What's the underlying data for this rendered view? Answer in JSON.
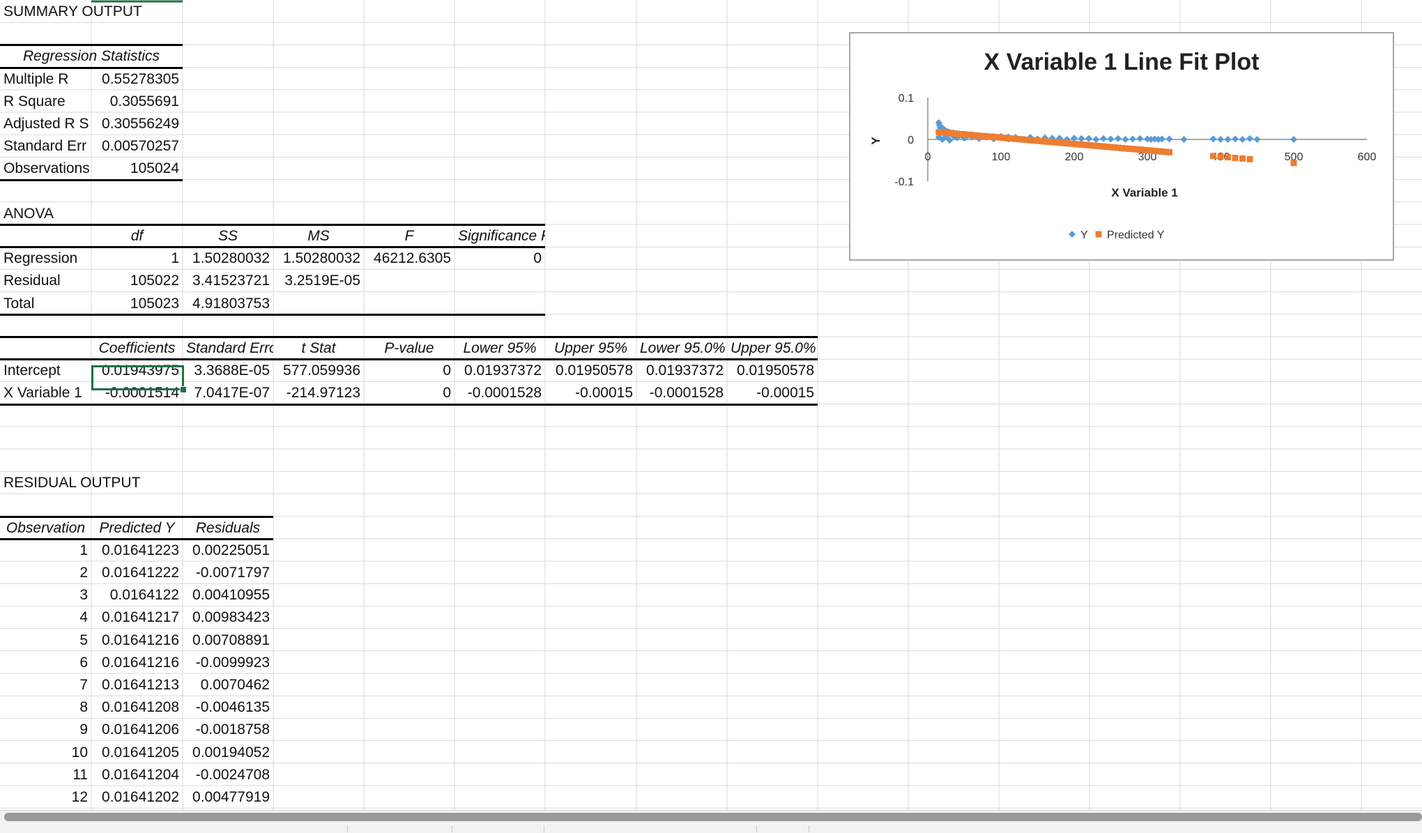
{
  "summary": {
    "title": "SUMMARY OUTPUT",
    "regstats_header": "Regression Statistics",
    "rows": [
      {
        "label": "Multiple R",
        "value": "0.55278305"
      },
      {
        "label": "R Square",
        "value": "0.3055691"
      },
      {
        "label": "Adjusted R S",
        "value": "0.30556249"
      },
      {
        "label": "Standard Err",
        "value": "0.00570257"
      },
      {
        "label": "Observations",
        "value": "105024"
      }
    ]
  },
  "anova": {
    "title": "ANOVA",
    "headers": [
      "df",
      "SS",
      "MS",
      "F",
      "Significance F"
    ],
    "rows": [
      {
        "label": "Regression",
        "df": "1",
        "ss": "1.50280032",
        "ms": "1.50280032",
        "f": "46212.6305",
        "sig": "0"
      },
      {
        "label": "Residual",
        "df": "105022",
        "ss": "3.41523721",
        "ms": "3.2519E-05",
        "f": "",
        "sig": ""
      },
      {
        "label": "Total",
        "df": "105023",
        "ss": "4.91803753",
        "ms": "",
        "f": "",
        "sig": ""
      }
    ]
  },
  "coefficients": {
    "headers": [
      "Coefficients",
      "Standard Erro",
      "t Stat",
      "P-value",
      "Lower 95%",
      "Upper 95%",
      "Lower 95.0%",
      "Upper 95.0%"
    ],
    "rows": [
      {
        "label": "Intercept",
        "values": [
          "0.01943975",
          "3.3688E-05",
          "577.059936",
          "0",
          "0.01937372",
          "0.01950578",
          "0.01937372",
          "0.01950578"
        ]
      },
      {
        "label": "X Variable 1",
        "values": [
          "-0.0001514",
          "7.0417E-07",
          "-214.97123",
          "0",
          "-0.0001528",
          "-0.00015",
          "-0.0001528",
          "-0.00015"
        ]
      }
    ]
  },
  "residual": {
    "title": "RESIDUAL OUTPUT",
    "headers": [
      "Observation",
      "Predicted Y",
      "Residuals"
    ],
    "rows": [
      {
        "obs": "1",
        "pred": "0.01641223",
        "res": "0.00225051"
      },
      {
        "obs": "2",
        "pred": "0.01641222",
        "res": "-0.0071797"
      },
      {
        "obs": "3",
        "pred": "0.0164122",
        "res": "0.00410955"
      },
      {
        "obs": "4",
        "pred": "0.01641217",
        "res": "0.00983423"
      },
      {
        "obs": "5",
        "pred": "0.01641216",
        "res": "0.00708891"
      },
      {
        "obs": "6",
        "pred": "0.01641216",
        "res": "-0.0099923"
      },
      {
        "obs": "7",
        "pred": "0.01641213",
        "res": "0.0070462"
      },
      {
        "obs": "8",
        "pred": "0.01641208",
        "res": "-0.0046135"
      },
      {
        "obs": "9",
        "pred": "0.01641206",
        "res": "-0.0018758"
      },
      {
        "obs": "10",
        "pred": "0.01641205",
        "res": "0.00194052"
      },
      {
        "obs": "11",
        "pred": "0.01641204",
        "res": "-0.0024708"
      },
      {
        "obs": "12",
        "pred": "0.01641202",
        "res": "0.00477919"
      }
    ]
  },
  "colors": {
    "gridline": "#d9d9d9",
    "selection": "#1e7145",
    "series_y": "#5b9bd5",
    "series_pred": "#ed7d31",
    "chart_border": "#a6a6a6"
  },
  "chart_data": {
    "type": "scatter",
    "title": "X Variable 1 Line Fit  Plot",
    "xlabel": "X Variable 1",
    "ylabel": "Y",
    "xlim": [
      0,
      600
    ],
    "ylim": [
      -0.1,
      0.1
    ],
    "x_ticks": [
      "0",
      "100",
      "200",
      "300",
      "400",
      "500",
      "600"
    ],
    "y_ticks": [
      "0.1",
      "0",
      "-0.1"
    ],
    "legend_position": "bottom",
    "series": [
      {
        "name": "Y",
        "marker": "diamond",
        "color": "#5b9bd5",
        "points": [
          [
            15,
            0.04
          ],
          [
            16,
            0.034
          ],
          [
            17,
            0.028
          ],
          [
            18,
            0.03
          ],
          [
            19,
            0.024
          ],
          [
            20,
            0.02
          ],
          [
            21,
            0.026
          ],
          [
            22,
            0.018
          ],
          [
            24,
            0.021
          ],
          [
            25,
            0.016
          ],
          [
            27,
            0.019
          ],
          [
            28,
            0.014
          ],
          [
            30,
            0.017
          ],
          [
            32,
            0.013
          ],
          [
            35,
            0.016
          ],
          [
            38,
            0.012
          ],
          [
            40,
            0.014
          ],
          [
            45,
            0.011
          ],
          [
            50,
            0.012
          ],
          [
            55,
            0.01
          ],
          [
            60,
            0.011
          ],
          [
            70,
            0.009
          ],
          [
            80,
            0.008
          ],
          [
            90,
            0.007
          ],
          [
            100,
            0.007
          ],
          [
            110,
            0.006
          ],
          [
            120,
            0.005
          ],
          [
            140,
            0.005
          ],
          [
            160,
            0.004
          ],
          [
            180,
            0.003
          ],
          [
            200,
            0.003
          ],
          [
            220,
            0.002
          ],
          [
            240,
            0.002
          ],
          [
            260,
            0.002
          ],
          [
            280,
            0.001
          ],
          [
            300,
            0.001
          ],
          [
            310,
            0.001
          ],
          [
            320,
            0.001
          ],
          [
            330,
            0.001
          ],
          [
            350,
            0.0
          ],
          [
            390,
            0.001
          ],
          [
            400,
            0.0
          ],
          [
            410,
            0.0
          ],
          [
            420,
            0.001
          ],
          [
            430,
            0.0
          ],
          [
            440,
            0.002
          ],
          [
            450,
            0.0
          ],
          [
            500,
            0.0
          ],
          [
            15,
            0.005
          ],
          [
            20,
            0.0
          ],
          [
            25,
            0.006
          ],
          [
            30,
            -0.002
          ],
          [
            35,
            0.008
          ],
          [
            40,
            0.004
          ],
          [
            50,
            0.003
          ],
          [
            60,
            0.006
          ],
          [
            70,
            0.002
          ],
          [
            80,
            0.005
          ],
          [
            90,
            0.001
          ],
          [
            100,
            0.004
          ],
          [
            110,
            0.001
          ],
          [
            120,
            0.003
          ],
          [
            130,
            0.0
          ],
          [
            140,
            0.002
          ],
          [
            150,
            0.001
          ],
          [
            170,
            0.003
          ],
          [
            190,
            0.0
          ],
          [
            210,
            0.002
          ],
          [
            230,
            0.0
          ],
          [
            250,
            0.001
          ],
          [
            270,
            0.0
          ],
          [
            290,
            0.002
          ],
          [
            305,
            0.0
          ],
          [
            315,
            0.0
          ]
        ]
      },
      {
        "name": "Predicted Y",
        "marker": "square",
        "color": "#ed7d31",
        "points": [
          [
            15,
            0.0172
          ],
          [
            20,
            0.0164
          ],
          [
            25,
            0.0157
          ],
          [
            30,
            0.0149
          ],
          [
            35,
            0.0141
          ],
          [
            40,
            0.0134
          ],
          [
            45,
            0.0126
          ],
          [
            50,
            0.0119
          ],
          [
            55,
            0.0111
          ],
          [
            60,
            0.0104
          ],
          [
            65,
            0.0096
          ],
          [
            70,
            0.0088
          ],
          [
            75,
            0.0081
          ],
          [
            80,
            0.0073
          ],
          [
            85,
            0.0066
          ],
          [
            90,
            0.0058
          ],
          [
            95,
            0.0051
          ],
          [
            100,
            0.0043
          ],
          [
            105,
            0.0035
          ],
          [
            110,
            0.0028
          ],
          [
            115,
            0.002
          ],
          [
            120,
            0.0013
          ],
          [
            125,
            0.0005
          ],
          [
            130,
            -0.0002
          ],
          [
            135,
            -0.001
          ],
          [
            140,
            -0.0018
          ],
          [
            145,
            -0.0025
          ],
          [
            150,
            -0.0033
          ],
          [
            155,
            -0.004
          ],
          [
            160,
            -0.0048
          ],
          [
            165,
            -0.0055
          ],
          [
            170,
            -0.0063
          ],
          [
            175,
            -0.0071
          ],
          [
            180,
            -0.0078
          ],
          [
            185,
            -0.0086
          ],
          [
            190,
            -0.0093
          ],
          [
            195,
            -0.0101
          ],
          [
            200,
            -0.0108
          ],
          [
            205,
            -0.0116
          ],
          [
            210,
            -0.0124
          ],
          [
            215,
            -0.0131
          ],
          [
            220,
            -0.0139
          ],
          [
            225,
            -0.0146
          ],
          [
            230,
            -0.0154
          ],
          [
            235,
            -0.0161
          ],
          [
            240,
            -0.0169
          ],
          [
            245,
            -0.0177
          ],
          [
            250,
            -0.0184
          ],
          [
            255,
            -0.0192
          ],
          [
            260,
            -0.0199
          ],
          [
            265,
            -0.0207
          ],
          [
            270,
            -0.0214
          ],
          [
            275,
            -0.0222
          ],
          [
            280,
            -0.023
          ],
          [
            285,
            -0.0237
          ],
          [
            290,
            -0.0245
          ],
          [
            295,
            -0.0252
          ],
          [
            300,
            -0.026
          ],
          [
            305,
            -0.0267
          ],
          [
            310,
            -0.0275
          ],
          [
            315,
            -0.0283
          ],
          [
            320,
            -0.029
          ],
          [
            325,
            -0.0298
          ],
          [
            330,
            -0.0305
          ],
          [
            390,
            -0.0396
          ],
          [
            400,
            -0.0412
          ],
          [
            410,
            -0.0427
          ],
          [
            420,
            -0.0442
          ],
          [
            430,
            -0.0457
          ],
          [
            440,
            -0.0472
          ],
          [
            500,
            -0.0563
          ]
        ]
      }
    ]
  }
}
